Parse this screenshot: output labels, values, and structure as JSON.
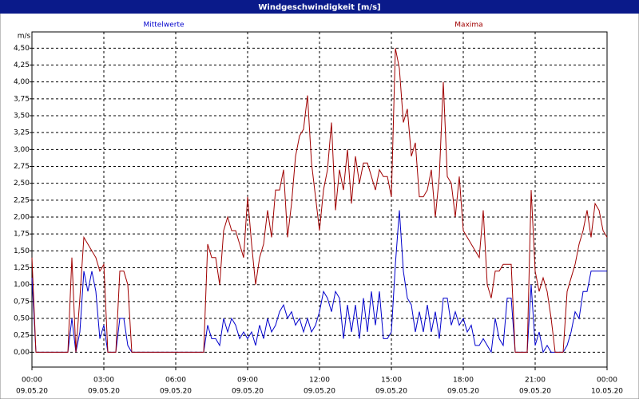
{
  "chart_data": {
    "type": "line",
    "title": "Windgeschwindigkeit [m/s]",
    "y_label": "m/s",
    "x": [
      0,
      10,
      20,
      30,
      40,
      50,
      60,
      70,
      80,
      90,
      100,
      110,
      120,
      130,
      140,
      150,
      160,
      170,
      180,
      190,
      200,
      210,
      220,
      230,
      240,
      250,
      260,
      270,
      280,
      290,
      300,
      310,
      320,
      330,
      340,
      350,
      360,
      370,
      380,
      390,
      400,
      410,
      420,
      430,
      440,
      450,
      460,
      470,
      480,
      490,
      500,
      510,
      520,
      530,
      540,
      550,
      560,
      570,
      580,
      590,
      600,
      610,
      620,
      630,
      640,
      650,
      660,
      670,
      680,
      690,
      700,
      710,
      720,
      730,
      740,
      750,
      760,
      770,
      780,
      790,
      800,
      810,
      820,
      830,
      840,
      850,
      860,
      870,
      880,
      890,
      900,
      910,
      920,
      930,
      940,
      950,
      960,
      970,
      980,
      990,
      1000,
      1010,
      1020,
      1030,
      1040,
      1050,
      1060,
      1070,
      1080,
      1090,
      1100,
      1110,
      1120,
      1130,
      1140,
      1150,
      1160,
      1170,
      1180,
      1190,
      1200,
      1210,
      1220,
      1230,
      1240,
      1250,
      1260,
      1270,
      1280,
      1290,
      1300,
      1310,
      1320,
      1330,
      1340,
      1350,
      1360,
      1370,
      1380,
      1390,
      1400,
      1410,
      1420,
      1430,
      1440
    ],
    "series": [
      {
        "name": "Mittelwerte",
        "color": "#0000cc",
        "values": [
          1.1,
          0,
          0,
          0,
          0,
          0,
          0,
          0,
          0,
          0,
          0.5,
          0,
          0.3,
          1.2,
          0.9,
          1.2,
          0.9,
          0.2,
          0.4,
          0,
          0,
          0,
          0.5,
          0.5,
          0.1,
          0,
          0,
          0,
          0,
          0,
          0,
          0,
          0,
          0,
          0,
          0,
          0,
          0,
          0,
          0,
          0,
          0,
          0,
          0,
          0.4,
          0.2,
          0.2,
          0.1,
          0.5,
          0.3,
          0.5,
          0.4,
          0.2,
          0.3,
          0.2,
          0.3,
          0.1,
          0.4,
          0.2,
          0.5,
          0.3,
          0.4,
          0.6,
          0.7,
          0.5,
          0.6,
          0.4,
          0.5,
          0.3,
          0.5,
          0.3,
          0.4,
          0.6,
          0.9,
          0.8,
          0.6,
          0.9,
          0.8,
          0.2,
          0.7,
          0.3,
          0.7,
          0.2,
          0.8,
          0.3,
          0.9,
          0.4,
          0.9,
          0.2,
          0.2,
          0.3,
          1.3,
          2.1,
          1.2,
          0.8,
          0.7,
          0.3,
          0.6,
          0.3,
          0.7,
          0.3,
          0.6,
          0.2,
          0.8,
          0.8,
          0.4,
          0.6,
          0.4,
          0.5,
          0.3,
          0.4,
          0.1,
          0.1,
          0.2,
          0.1,
          0,
          0.5,
          0.2,
          0.1,
          0.8,
          0.8,
          0,
          0,
          0,
          0,
          1.0,
          0.1,
          0.3,
          0,
          0.1,
          0,
          0,
          0,
          0,
          0.1,
          0.3,
          0.6,
          0.5,
          0.9,
          0.9,
          1.2,
          1.2,
          1.2,
          1.2,
          1.2
        ]
      },
      {
        "name": "Maxima",
        "color": "#a00000",
        "values": [
          1.4,
          0,
          0,
          0,
          0,
          0,
          0,
          0,
          0,
          0,
          1.4,
          0,
          0.8,
          1.7,
          1.6,
          1.5,
          1.4,
          1.2,
          1.3,
          0,
          0,
          0,
          1.2,
          1.2,
          1.0,
          0,
          0,
          0,
          0,
          0,
          0,
          0,
          0,
          0,
          0,
          0,
          0,
          0,
          0,
          0,
          0,
          0,
          0,
          0,
          1.6,
          1.4,
          1.4,
          1.0,
          1.8,
          2.0,
          1.8,
          1.8,
          1.6,
          1.4,
          2.3,
          1.6,
          1.0,
          1.4,
          1.6,
          2.1,
          1.7,
          2.4,
          2.4,
          2.7,
          1.7,
          2.2,
          2.9,
          3.2,
          3.3,
          3.8,
          2.8,
          2.3,
          1.8,
          2.4,
          2.7,
          3.4,
          2.1,
          2.7,
          2.4,
          3.0,
          2.2,
          2.9,
          2.5,
          2.8,
          2.8,
          2.6,
          2.4,
          2.7,
          2.6,
          2.6,
          2.3,
          4.5,
          4.2,
          3.4,
          3.6,
          2.9,
          3.1,
          2.3,
          2.3,
          2.4,
          2.7,
          2.0,
          2.6,
          4.0,
          2.6,
          2.5,
          2.0,
          2.6,
          1.8,
          1.7,
          1.6,
          1.5,
          1.4,
          2.1,
          1.0,
          0.8,
          1.2,
          1.2,
          1.3,
          1.3,
          1.3,
          0,
          0,
          0,
          0,
          2.4,
          1.2,
          0.9,
          1.1,
          0.9,
          0.5,
          0,
          0,
          0,
          0.9,
          1.1,
          1.3,
          1.6,
          1.8,
          2.1,
          1.7,
          2.2,
          2.1,
          1.8,
          1.7
        ]
      }
    ],
    "xlim": [
      0,
      1440
    ],
    "xticks": [
      {
        "value": 0,
        "label": "00:00"
      },
      {
        "value": 180,
        "label": "03:00"
      },
      {
        "value": 360,
        "label": "06:00"
      },
      {
        "value": 540,
        "label": "09:00"
      },
      {
        "value": 720,
        "label": "12:00"
      },
      {
        "value": 900,
        "label": "15:00"
      },
      {
        "value": 1080,
        "label": "18:00"
      },
      {
        "value": 1260,
        "label": "21:00"
      },
      {
        "value": 1440,
        "label": "00:00"
      }
    ],
    "xtick_dates": [
      "09.05.20",
      "09.05.20",
      "09.05.20",
      "09.05.20",
      "09.05.20",
      "09.05.20",
      "09.05.20",
      "09.05.20",
      "10.05.20"
    ],
    "ylim": [
      -0.22,
      4.74
    ],
    "yticks": [
      {
        "value": 0,
        "label": "0,00"
      },
      {
        "value": 0.25,
        "label": "0,25"
      },
      {
        "value": 0.5,
        "label": "0,50"
      },
      {
        "value": 0.75,
        "label": "0,75"
      },
      {
        "value": 1,
        "label": "1,00"
      },
      {
        "value": 1.25,
        "label": "1,25"
      },
      {
        "value": 1.5,
        "label": "1,50"
      },
      {
        "value": 1.75,
        "label": "1,75"
      },
      {
        "value": 2,
        "label": "2,00"
      },
      {
        "value": 2.25,
        "label": "2,25"
      },
      {
        "value": 2.5,
        "label": "2,50"
      },
      {
        "value": 2.75,
        "label": "2,75"
      },
      {
        "value": 3,
        "label": "3,00"
      },
      {
        "value": 3.25,
        "label": "3,25"
      },
      {
        "value": 3.5,
        "label": "3,50"
      },
      {
        "value": 3.75,
        "label": "3,75"
      },
      {
        "value": 4,
        "label": "4,00"
      },
      {
        "value": 4.25,
        "label": "4,25"
      },
      {
        "value": 4.5,
        "label": "4,50"
      }
    ],
    "grid": true
  }
}
